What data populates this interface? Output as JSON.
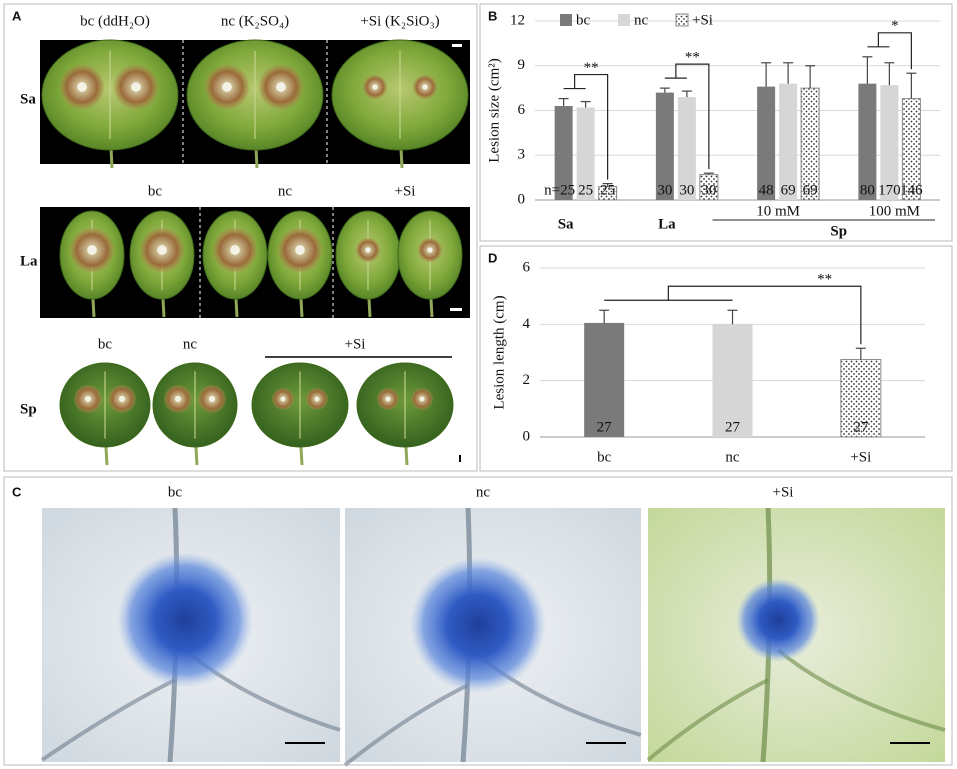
{
  "panel_a": {
    "label": "A",
    "rows": [
      {
        "name": "Sa",
        "columns": [
          "bc (ddH₂O)",
          "nc (K₂SO₄)",
          "+Si (K₂SiO₃)"
        ]
      },
      {
        "name": "La",
        "columns": [
          "bc",
          "nc",
          "+Si"
        ]
      },
      {
        "name": "Sp",
        "columns": [
          "bc",
          "nc",
          "+Si"
        ]
      }
    ]
  },
  "panel_c": {
    "label": "C",
    "columns": [
      "bc",
      "nc",
      "+Si"
    ]
  },
  "chart_data": [
    {
      "type": "bar",
      "label": "B",
      "y_label": "Lesion size (cm²)",
      "categories": [
        "Sa",
        "La",
        "10 mM",
        "100 mM"
      ],
      "group_label": "Sp",
      "ylim": [
        0,
        12
      ],
      "yticks": [
        0,
        3,
        6,
        9,
        12
      ],
      "grid": true,
      "legend": "top",
      "series": [
        {
          "name": "bc",
          "color": "#7a7a7a",
          "values": [
            6.3,
            7.2,
            7.6,
            7.8
          ],
          "errors": [
            0.5,
            0.3,
            1.6,
            1.8
          ],
          "n_labels": [
            "n=25",
            "30",
            "48",
            "80"
          ]
        },
        {
          "name": "nc",
          "color": "#d6d6d6",
          "values": [
            6.2,
            6.9,
            7.8,
            7.7
          ],
          "errors": [
            0.4,
            0.4,
            1.4,
            1.5
          ],
          "n_labels": [
            "25",
            "30",
            "69",
            "170"
          ]
        },
        {
          "name": "+Si",
          "color": "#ffffff",
          "pattern": "dots",
          "values": [
            0.9,
            1.7,
            7.5,
            6.8
          ],
          "errors": [
            0.2,
            0.1,
            1.5,
            1.7
          ],
          "n_labels": [
            "25",
            "30",
            "69",
            "146"
          ]
        }
      ],
      "significance": [
        "**",
        "**",
        null,
        "*"
      ]
    },
    {
      "type": "bar",
      "label": "D",
      "y_label": "Lesion length (cm)",
      "categories": [
        "bc",
        "nc",
        "+Si"
      ],
      "values": [
        4.05,
        4.0,
        2.75
      ],
      "errors": [
        0.45,
        0.5,
        0.4
      ],
      "colors": [
        "#7a7a7a",
        "#d6d6d6",
        "#ffffff"
      ],
      "patterns": [
        null,
        null,
        "dots"
      ],
      "n_labels": [
        "27",
        "27",
        "27"
      ],
      "ylim": [
        0,
        6
      ],
      "yticks": [
        0,
        2,
        4,
        6
      ],
      "grid": true,
      "significance": "**"
    }
  ]
}
